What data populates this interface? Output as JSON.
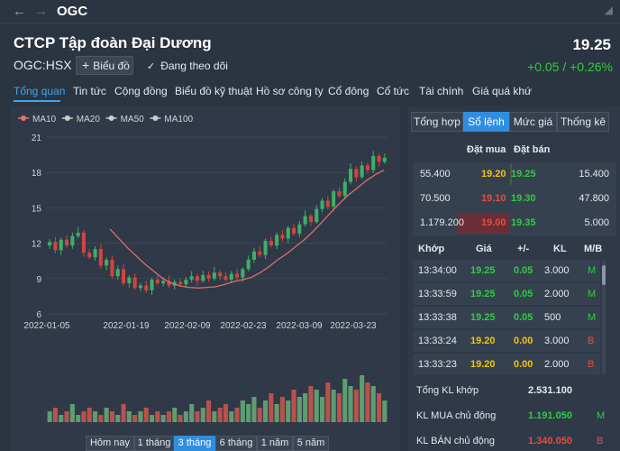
{
  "titlebar": {
    "title": "OGC"
  },
  "header": {
    "company": "CTCP Tập đoàn Đại Dương",
    "ticker": "OGC:HSX",
    "chart_button": "Biểu đồ",
    "follow_label": "Đang theo dõi",
    "price": "19.25",
    "change": "+0.05 / +0.26%"
  },
  "tabs": [
    "Tổng quan",
    "Tin tức",
    "Cộng đồng",
    "Biểu đồ kỹ thuật",
    "Hồ sơ công ty",
    "Cổ đông",
    "Cổ tức",
    "Tài chính",
    "Giá quá khứ"
  ],
  "right_tabs": [
    "Tổng hợp",
    "Sổ lệnh",
    "Mức giá",
    "Thống kê"
  ],
  "orderbook": {
    "headers": {
      "bid": "Đặt mua",
      "ask": "Đặt bán"
    },
    "rows": [
      {
        "bid_qty": "55.400",
        "bid_price": "19.20",
        "ask_price": "19.25",
        "ask_qty": "15.400"
      },
      {
        "bid_qty": "70.500",
        "bid_price": "19.10",
        "ask_price": "19.30",
        "ask_qty": "47.800"
      },
      {
        "bid_qty": "1.179.200",
        "bid_price": "19.00",
        "ask_price": "19.35",
        "ask_qty": "5.000"
      }
    ]
  },
  "trades": {
    "headers": [
      "Khớp",
      "Giá",
      "+/-",
      "KL",
      "M/B"
    ],
    "rows": [
      {
        "time": "13:34:00",
        "price": "19.25",
        "change": "0.05",
        "vol": "3.000",
        "side": "M"
      },
      {
        "time": "13:33:59",
        "price": "19.25",
        "change": "0.05",
        "vol": "2.000",
        "side": "M"
      },
      {
        "time": "13:33:38",
        "price": "19.25",
        "change": "0.05",
        "vol": "500",
        "side": "M"
      },
      {
        "time": "13:33:24",
        "price": "19.20",
        "change": "0.00",
        "vol": "3.000",
        "side": "B"
      },
      {
        "time": "13:33:23",
        "price": "19.20",
        "change": "0.00",
        "vol": "2.000",
        "side": "B"
      }
    ]
  },
  "summary": [
    {
      "label": "Tổng KL khớp",
      "value": "2.531.100",
      "side": ""
    },
    {
      "label": "KL MUA chủ động",
      "value": "1.191.050",
      "side": "M"
    },
    {
      "label": "KL BÁN chủ động",
      "value": "1.340.050",
      "side": "B"
    }
  ],
  "periods": [
    "Hôm nay",
    "1 tháng",
    "3 tháng",
    "6 tháng",
    "1 năm",
    "5 năm"
  ],
  "colors": {
    "up": "#2ecc40",
    "down": "#e74c3c",
    "ref": "#f1c40f",
    "accent": "#3ea6f2"
  },
  "chart_data": {
    "type": "candlestick",
    "legend": [
      "MA10",
      "MA20",
      "MA50",
      "MA100"
    ],
    "legend_colors": [
      "#e87070",
      "#cccccc",
      "#cccccc",
      "#cccccc"
    ],
    "y_ticks": [
      6,
      9,
      12,
      15,
      18,
      21
    ],
    "ylim": [
      6,
      21
    ],
    "x_ticks": [
      "2022-01-05",
      "2022-01-19",
      "2022-02-09",
      "2022-02-23",
      "2022-03-09",
      "2022-03-23"
    ],
    "closes": [
      12.1,
      11.4,
      12.3,
      11.8,
      12.6,
      12.9,
      11.2,
      10.8,
      11.5,
      10.1,
      10.6,
      9.2,
      9.8,
      8.6,
      9.1,
      8.2,
      8.4,
      8.0,
      8.9,
      8.6,
      8.8,
      8.4,
      8.7,
      8.5,
      8.9,
      9.2,
      8.8,
      9.3,
      9.0,
      9.5,
      9.2,
      8.9,
      9.4,
      9.1,
      9.8,
      10.6,
      11.3,
      11.0,
      12.2,
      11.8,
      12.7,
      12.4,
      13.3,
      12.8,
      13.6,
      14.3,
      13.8,
      14.9,
      15.6,
      15.1,
      16.4,
      16.0,
      17.2,
      18.3,
      17.6,
      18.6,
      18.2,
      19.4,
      18.9,
      19.25
    ],
    "ma_line": [
      13.2,
      12.4,
      11.6,
      10.9,
      10.2,
      9.6,
      9.0,
      8.6,
      8.35,
      8.25,
      8.2,
      8.25,
      8.3,
      8.5,
      8.75,
      8.9,
      9.1,
      9.5,
      10.0,
      10.6,
      11.1,
      11.7,
      12.3,
      13.0,
      13.8,
      14.6,
      15.4,
      16.1,
      16.7,
      17.3,
      17.8,
      18.2
    ],
    "volumes": [
      3,
      4,
      2,
      3,
      5,
      2,
      3,
      4,
      3,
      2,
      4,
      3,
      2,
      5,
      3,
      2,
      3,
      4,
      2,
      3,
      2,
      3,
      4,
      2,
      3,
      5,
      3,
      4,
      6,
      3,
      4,
      5,
      3,
      4,
      6,
      5,
      7,
      4,
      6,
      8,
      5,
      7,
      6,
      9,
      7,
      8,
      10,
      9,
      7,
      11,
      9,
      8,
      12,
      10,
      9,
      13,
      11,
      10,
      8,
      6
    ]
  }
}
